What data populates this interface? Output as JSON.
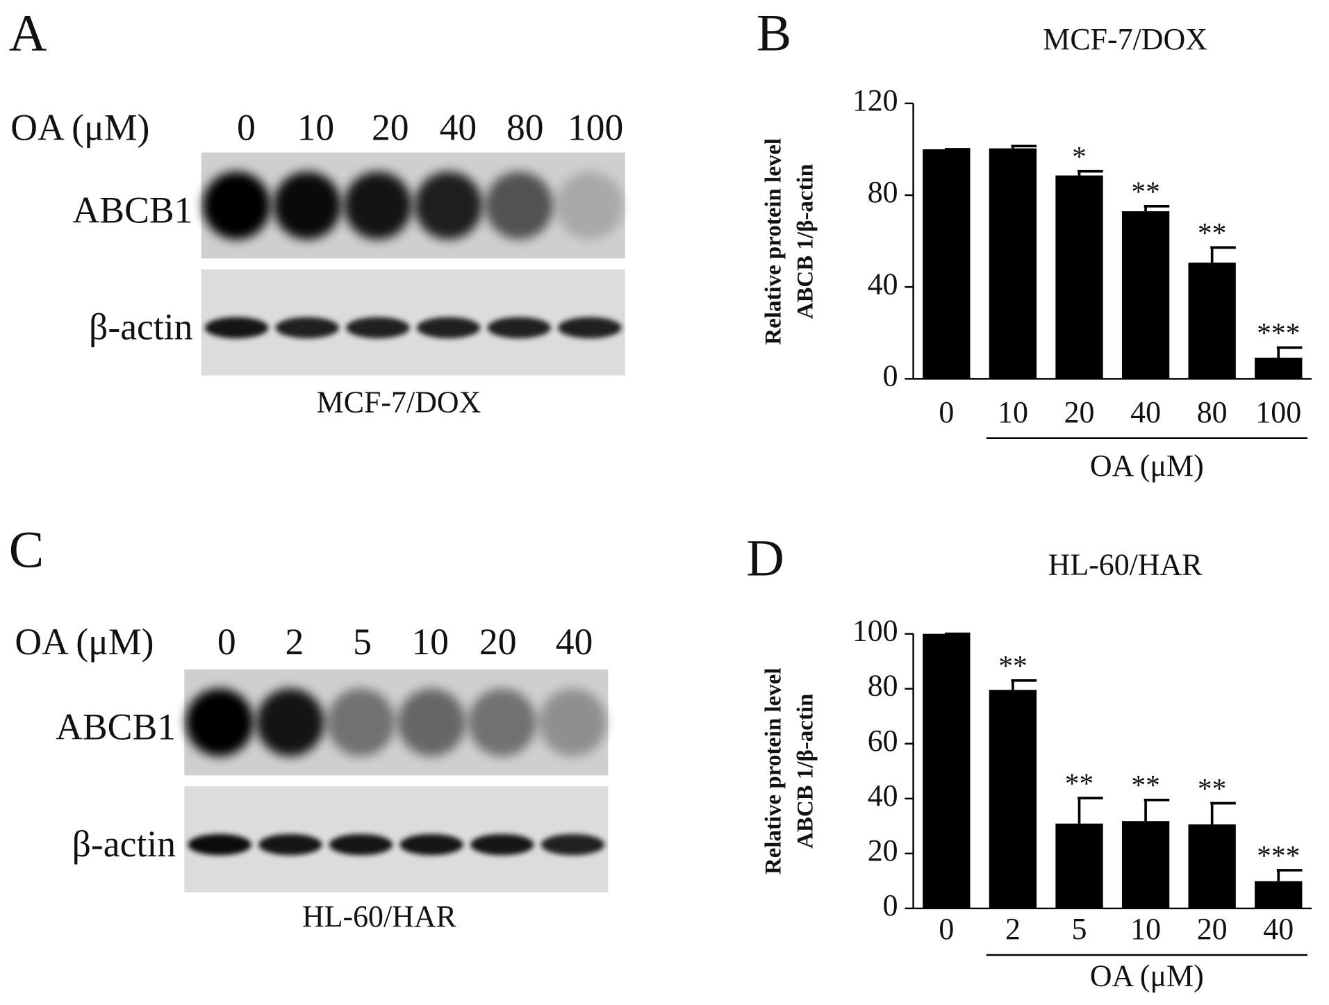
{
  "panel_labels": [
    "A",
    "B",
    "C",
    "D"
  ],
  "blots": [
    {
      "header": "OA (μM)",
      "lanes": [
        "0",
        "10",
        "20",
        "40",
        "80",
        "100"
      ],
      "rows": [
        "ABCB1",
        "β-actin"
      ],
      "caption": "MCF-7/DOX"
    },
    {
      "header": "OA (μM)",
      "lanes": [
        "0",
        "2",
        "5",
        "10",
        "20",
        "40"
      ],
      "rows": [
        "ABCB1",
        "β-actin"
      ],
      "caption": "HL-60/HAR"
    }
  ],
  "chart_data": [
    {
      "type": "bar",
      "title": "MCF-7/DOX",
      "ylabel": [
        "Relative protein level",
        "ABCB 1/β-actin"
      ],
      "xlabel": "OA (μM)",
      "categories": [
        "0",
        "10",
        "20",
        "40",
        "80",
        "100"
      ],
      "values": [
        100,
        100.4,
        88.6,
        73,
        50.6,
        9.2
      ],
      "errors": [
        0,
        1,
        1.8,
        2.2,
        6.6,
        4.4
      ],
      "significance": [
        null,
        null,
        "*",
        "**",
        "**",
        "***"
      ],
      "color": "#000000",
      "ylim": [
        0,
        120
      ],
      "yticks": [
        0,
        40,
        80,
        120
      ]
    },
    {
      "type": "bar",
      "title": "HL-60/HAR",
      "ylabel": [
        "Relative protein level",
        "ABCB 1/β-actin"
      ],
      "xlabel": "OA (μM)",
      "categories": [
        "0",
        "2",
        "5",
        "10",
        "20",
        "40"
      ],
      "values": [
        100,
        79.6,
        30.9,
        31.8,
        30.6,
        9.9
      ],
      "errors": [
        0,
        3.4,
        9.3,
        7.7,
        7.7,
        4
      ],
      "significance": [
        null,
        "**",
        "**",
        "**",
        "**",
        "***"
      ],
      "color": "#000000",
      "ylim": [
        0,
        100
      ],
      "yticks": [
        0,
        20,
        40,
        60,
        80,
        100
      ]
    }
  ]
}
